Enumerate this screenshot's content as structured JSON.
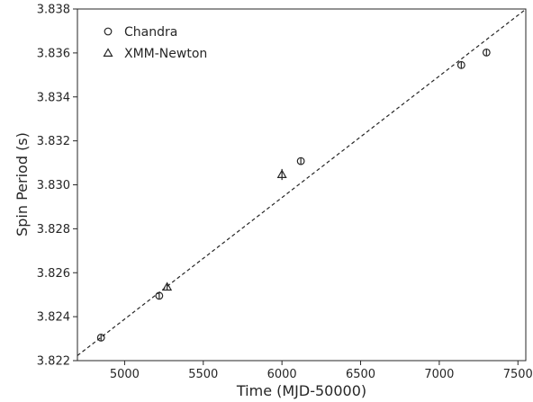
{
  "chart_data": {
    "type": "scatter",
    "xlabel": "Time (MJD-50000)",
    "ylabel": "Spin Period (s)",
    "xlim": [
      4700,
      7550
    ],
    "ylim": [
      3.822,
      3.838
    ],
    "x_ticks": [
      5000,
      5500,
      6000,
      6500,
      7000,
      7500
    ],
    "y_ticks": [
      3.822,
      3.824,
      3.826,
      3.828,
      3.83,
      3.832,
      3.834,
      3.836,
      3.838
    ],
    "x_tick_labels": [
      "5000",
      "5500",
      "6000",
      "6500",
      "7000",
      "7500"
    ],
    "y_tick_labels": [
      "3.822",
      "3.824",
      "3.826",
      "3.828",
      "3.830",
      "3.832",
      "3.834",
      "3.836",
      "3.838"
    ],
    "grid": false,
    "legend_position": "top-left",
    "series": [
      {
        "name": "Chandra",
        "marker": "circle",
        "points": [
          {
            "x": 4850,
            "y": 3.82305
          },
          {
            "x": 5220,
            "y": 3.82495
          },
          {
            "x": 6120,
            "y": 3.83108
          },
          {
            "x": 7140,
            "y": 3.83545
          },
          {
            "x": 7300,
            "y": 3.83602
          }
        ]
      },
      {
        "name": "XMM-Newton",
        "marker": "triangle",
        "points": [
          {
            "x": 5270,
            "y": 3.82535,
            "yerr": 0.00012
          },
          {
            "x": 6000,
            "y": 3.83047,
            "yerr": 0.00025
          }
        ]
      }
    ],
    "fit_line": {
      "style": "dashed",
      "x": [
        4700,
        7550
      ],
      "y": [
        3.82223,
        3.83799
      ]
    }
  },
  "colors": {
    "markers": "#262626",
    "line": "#262626"
  }
}
